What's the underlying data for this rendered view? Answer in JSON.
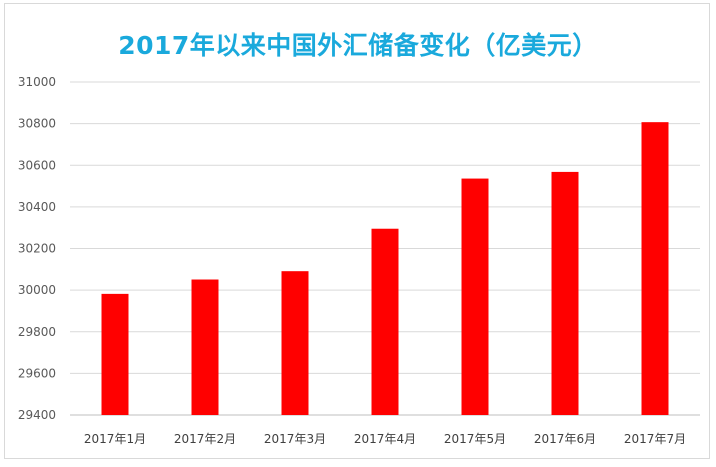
{
  "chart_data": {
    "type": "bar",
    "title": "2017年以来中国外汇储备变化（亿美元）",
    "xlabel": "",
    "ylabel": "",
    "categories": [
      "2017年1月",
      "2017年2月",
      "2017年3月",
      "2017年4月",
      "2017年5月",
      "2017年6月",
      "2017年7月"
    ],
    "values": [
      29982,
      30051,
      30091,
      30295,
      30536,
      30568,
      30807
    ],
    "ylim": [
      29400,
      31000
    ],
    "yticks": [
      29400,
      29600,
      29800,
      30000,
      30200,
      30400,
      30600,
      30800,
      31000
    ],
    "grid": true,
    "legend": "none",
    "bar_color": "#ff0000",
    "title_color": "#1aa9dc"
  }
}
